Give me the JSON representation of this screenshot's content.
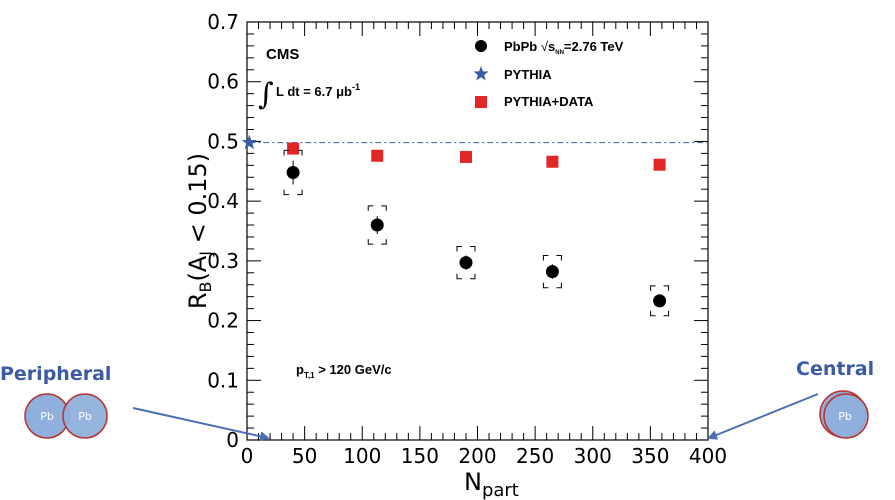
{
  "chart_data": {
    "type": "scatter",
    "title": "",
    "xlabel": "N",
    "xlabel_sub": "part",
    "ylabel": "R",
    "ylabel_sub": "B",
    "ylabel_mid": "(A",
    "ylabel_sub2": "J",
    "ylabel_tail": " < 0.15)",
    "xlim": [
      0,
      400
    ],
    "ylim": [
      0,
      0.7
    ],
    "x_ticks": [
      "0",
      "50",
      "100",
      "150",
      "200",
      "250",
      "300",
      "350",
      "400"
    ],
    "y_ticks": [
      "0",
      "0.1",
      "0.2",
      "0.3",
      "0.4",
      "0.5",
      "0.6",
      "0.7"
    ],
    "grid": false,
    "legend_position": "top-right",
    "series": [
      {
        "name": "PbPb",
        "name_suffix": "=2.76 TeV",
        "marker": "circle",
        "color": "#000000",
        "x": [
          40,
          113,
          190,
          265,
          358
        ],
        "y": [
          0.448,
          0.36,
          0.297,
          0.282,
          0.233
        ],
        "syst_err": [
          0.037,
          0.032,
          0.027,
          0.027,
          0.025
        ],
        "stat_err": [
          0.02,
          0.015,
          0.012,
          0.012,
          0.011
        ]
      },
      {
        "name": "PYTHIA",
        "marker": "star",
        "color": "#3b5aa6",
        "x": [
          2
        ],
        "y": [
          0.498
        ],
        "reference_line": 0.498
      },
      {
        "name": "PYTHIA+DATA",
        "marker": "square",
        "color": "#e32626",
        "x": [
          40,
          113,
          190,
          265,
          358
        ],
        "y": [
          0.488,
          0.476,
          0.474,
          0.466,
          0.461
        ]
      }
    ],
    "annotations": {
      "experiment": "CMS",
      "luminosity": "L dt = 6.7 μb",
      "luminosity_sup": "-1",
      "pt_cut_prefix": "p",
      "pt_cut_sub": "T,1",
      "pt_cut_suffix": " > 120 GeV/c",
      "sqrt_label": "s",
      "sqrt_sub": "NN"
    },
    "side_labels": {
      "left": "Peripheral",
      "right": "Central",
      "pb": "Pb",
      "pb_right": "Pb"
    },
    "colors": {
      "label_blue": "#3b5aa6",
      "nucleus_fill": "#8fb0dc",
      "nucleus_edge": "#b8322f",
      "arrow": "#4a6fb5"
    }
  }
}
